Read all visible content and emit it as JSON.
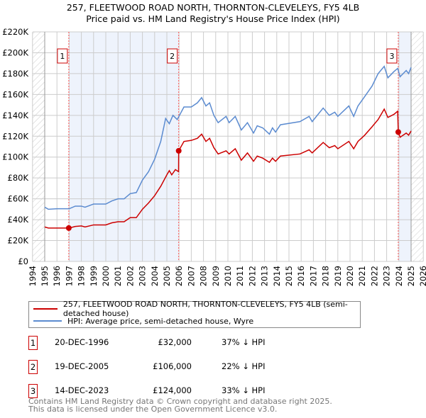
{
  "chart_data": {
    "type": "line",
    "title": "257, FLEETWOOD ROAD NORTH, THORNTON-CLEVELEYS, FY5 4LB",
    "subtitle": "Price paid vs. HM Land Registry's House Price Index (HPI)",
    "xlim": [
      1994,
      2026
    ],
    "ylim": [
      0,
      220000
    ],
    "y_ticks": [
      "£0",
      "£20K",
      "£40K",
      "£60K",
      "£80K",
      "£100K",
      "£120K",
      "£140K",
      "£160K",
      "£180K",
      "£200K",
      "£220K"
    ],
    "x_ticks": [
      "1994",
      "1995",
      "1996",
      "1997",
      "1998",
      "1999",
      "2000",
      "2001",
      "2002",
      "2003",
      "2004",
      "2005",
      "2006",
      "2007",
      "2008",
      "2009",
      "2010",
      "2011",
      "2012",
      "2013",
      "2014",
      "2015",
      "2016",
      "2017",
      "2018",
      "2019",
      "2020",
      "2021",
      "2022",
      "2023",
      "2024",
      "2025",
      "2026"
    ],
    "grid": true,
    "colors": {
      "property": "#cc0000",
      "hpi": "#5b8bd0",
      "shade": "#eef3fc"
    },
    "series": [
      {
        "name": "257, FLEETWOOD ROAD NORTH, THORNTON-CLEVELEYS, FY5 4LB (semi-detached house)",
        "unit": "£K",
        "x": [
          1995,
          1995.3,
          1996,
          1997,
          1997.5,
          1998,
          1998.3,
          1999,
          2000,
          2000.5,
          2001,
          2001.5,
          2002,
          2002.5,
          2003,
          2003.5,
          2004,
          2004.5,
          2005,
          2005.2,
          2005.4,
          2005.7,
          2005.96,
          2005.97,
          2006.4,
          2007,
          2007.5,
          2007.85,
          2008.2,
          2008.5,
          2008.85,
          2009.2,
          2009.85,
          2010.1,
          2010.6,
          2011.1,
          2011.6,
          2012.1,
          2012.4,
          2012.85,
          2013.4,
          2013.65,
          2013.9,
          2014.3,
          2015.9,
          2016.65,
          2016.9,
          2017.8,
          2018.3,
          2018.75,
          2019,
          2019.9,
          2020.3,
          2020.65,
          2021.2,
          2021.8,
          2022.3,
          2022.8,
          2023.1,
          2023.6,
          2023.9,
          2023.95,
          2024.1,
          2024.6,
          2024.8,
          2025
        ],
        "y": [
          33,
          32,
          32,
          32,
          33.5,
          34,
          33,
          35,
          35,
          37,
          38,
          38,
          42,
          42,
          50,
          56,
          63,
          72,
          83,
          87,
          83,
          88,
          86,
          106,
          115,
          116,
          118,
          122,
          115,
          118,
          109,
          103,
          106,
          103,
          108,
          97,
          104,
          96,
          101,
          99,
          95,
          99,
          96,
          101,
          103,
          107,
          104,
          114,
          109,
          111,
          108,
          115,
          108,
          115,
          121,
          129,
          136,
          146,
          138,
          141,
          144,
          124,
          119,
          123,
          121,
          125
        ]
      },
      {
        "name": "HPI: Average price, semi-detached house, Wyre",
        "unit": "£K",
        "x": [
          1995,
          1995.3,
          1996,
          1997,
          1997.5,
          1998,
          1998.3,
          1999,
          2000,
          2000.5,
          2001,
          2001.5,
          2002,
          2002.5,
          2003,
          2003.5,
          2004,
          2004.5,
          2004.9,
          2005.2,
          2005.5,
          2005.85,
          2006.4,
          2007,
          2007.5,
          2007.85,
          2008.2,
          2008.5,
          2008.85,
          2009.2,
          2009.85,
          2010.1,
          2010.6,
          2011.1,
          2011.6,
          2012.1,
          2012.4,
          2012.85,
          2013.4,
          2013.65,
          2013.9,
          2014.3,
          2015.9,
          2016.65,
          2016.9,
          2017.8,
          2018.3,
          2018.75,
          2019,
          2019.9,
          2020.3,
          2020.65,
          2021.2,
          2021.8,
          2022.3,
          2022.8,
          2023.1,
          2023.6,
          2023.9,
          2024.1,
          2024.6,
          2024.8,
          2025
        ],
        "y": [
          52,
          50,
          50.5,
          50.5,
          53,
          53,
          52,
          55,
          55,
          58,
          60,
          60,
          65,
          66,
          78,
          86,
          98,
          115,
          137,
          132,
          140,
          136,
          148,
          148,
          152,
          157,
          149,
          152,
          140,
          133,
          139,
          133,
          139,
          126,
          133,
          123,
          130,
          128,
          122,
          128,
          124,
          131,
          134,
          139,
          134,
          147,
          140,
          143,
          139,
          149,
          139,
          149,
          158,
          168,
          180,
          187,
          176,
          182,
          185,
          177,
          183,
          180,
          186
        ]
      }
    ],
    "sales": [
      {
        "label": "1",
        "year": 1996.97,
        "price": 32,
        "date": "20-DEC-1996",
        "price_text": "£32,000",
        "hpi_text": "37% ↓ HPI"
      },
      {
        "label": "2",
        "year": 2005.97,
        "price": 106,
        "date": "19-DEC-2005",
        "price_text": "£106,000",
        "hpi_text": "22% ↓ HPI"
      },
      {
        "label": "3",
        "year": 2023.95,
        "price": 124,
        "date": "14-DEC-2023",
        "price_text": "£124,000",
        "hpi_text": "33% ↓ HPI"
      }
    ],
    "legend_placement": "bottom"
  },
  "footer": {
    "line1": "Contains HM Land Registry data © Crown copyright and database right 2025.",
    "line2": "This data is licensed under the Open Government Licence v3.0."
  }
}
